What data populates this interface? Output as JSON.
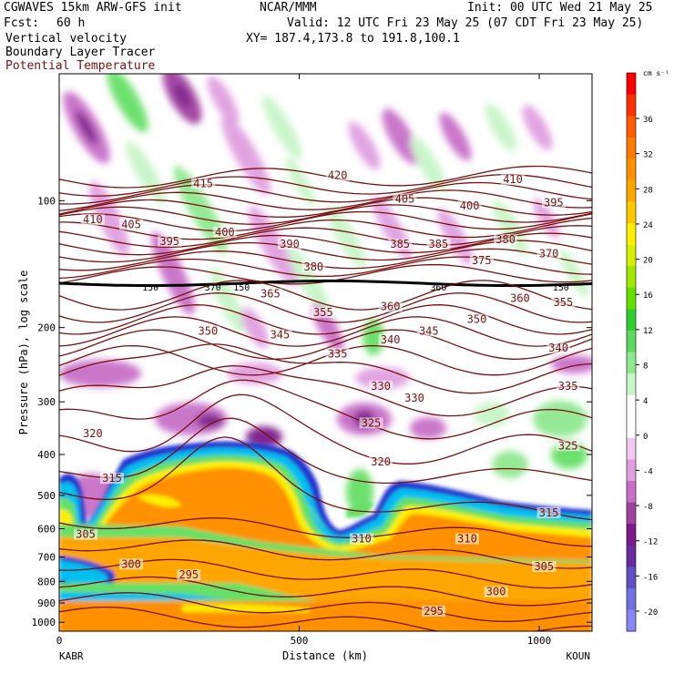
{
  "header": {
    "model": "CGWAVES 15km ARW-GFS init",
    "center": "NCAR/MMM",
    "init": "Init: 00 UTC Wed 21 May 25",
    "fcst_label": "Fcst:",
    "fcst_value": "60 h",
    "valid": "Valid: 12 UTC Fri 23 May 25 (07 CDT Fri 23 May 25)",
    "field1": "Vertical velocity",
    "xy": "XY= 187.4,173.8 to 191.8,100.1",
    "field2": "Boundary Layer Tracer",
    "field3": "Potential Temperature"
  },
  "chart_data": {
    "type": "heatmap",
    "xlabel": "Distance (km)",
    "ylabel": "Pressure (hPa), log scale",
    "x_ticks": [
      0,
      500,
      1000
    ],
    "x_range": [
      0,
      1110
    ],
    "y_ticks": [
      100,
      200,
      300,
      400,
      500,
      600,
      700,
      800,
      900,
      1000
    ],
    "y_range": [
      1050,
      50
    ],
    "left_endpoint": "KABR",
    "right_endpoint": "KOUN",
    "colorbar": {
      "units": "cm s⁻¹",
      "tick_labels": [
        36,
        32,
        28,
        24,
        20,
        16,
        12,
        8,
        4,
        0,
        -4,
        -8,
        -12,
        -16,
        -20
      ],
      "colors": [
        "#ff0000",
        "#ff3000",
        "#ff5a00",
        "#ff7a00",
        "#ff9000",
        "#ffa500",
        "#ffc800",
        "#ffee00",
        "#d6f000",
        "#a0e800",
        "#66e000",
        "#2ed02e",
        "#5cd85c",
        "#90e890",
        "#c8f5c8",
        "#ffffff",
        "#ffffff",
        "#f0c8f0",
        "#e0a0e0",
        "#c870c8",
        "#a040a0",
        "#7a1a8a",
        "#6a2aa0",
        "#6050c0",
        "#7070e0",
        "#8888f0"
      ]
    },
    "isentrope_labels": [
      {
        "v": "415",
        "x": 300,
        "p": 92
      },
      {
        "v": "420",
        "x": 580,
        "p": 88
      },
      {
        "v": "410",
        "x": 945,
        "p": 90
      },
      {
        "v": "410",
        "x": 70,
        "p": 112
      },
      {
        "v": "405",
        "x": 150,
        "p": 115
      },
      {
        "v": "405",
        "x": 720,
        "p": 100
      },
      {
        "v": "400",
        "x": 345,
        "p": 120
      },
      {
        "v": "400",
        "x": 855,
        "p": 104
      },
      {
        "v": "395",
        "x": 230,
        "p": 126
      },
      {
        "v": "395",
        "x": 1030,
        "p": 102
      },
      {
        "v": "390",
        "x": 480,
        "p": 128
      },
      {
        "v": "385",
        "x": 710,
        "p": 128
      },
      {
        "v": "385",
        "x": 790,
        "p": 128
      },
      {
        "v": "380",
        "x": 530,
        "p": 145
      },
      {
        "v": "380",
        "x": 930,
        "p": 125
      },
      {
        "v": "375",
        "x": 880,
        "p": 140
      },
      {
        "v": "370",
        "x": 1020,
        "p": 135
      },
      {
        "v": "365",
        "x": 440,
        "p": 168
      },
      {
        "v": "360",
        "x": 690,
        "p": 180
      },
      {
        "v": "360",
        "x": 960,
        "p": 172
      },
      {
        "v": "355",
        "x": 550,
        "p": 186
      },
      {
        "v": "355",
        "x": 1050,
        "p": 176
      },
      {
        "v": "350",
        "x": 310,
        "p": 206
      },
      {
        "v": "350",
        "x": 870,
        "p": 193
      },
      {
        "v": "345",
        "x": 460,
        "p": 210
      },
      {
        "v": "345",
        "x": 770,
        "p": 206
      },
      {
        "v": "340",
        "x": 690,
        "p": 216
      },
      {
        "v": "340",
        "x": 1040,
        "p": 226
      },
      {
        "v": "335",
        "x": 580,
        "p": 233
      },
      {
        "v": "335",
        "x": 1060,
        "p": 278
      },
      {
        "v": "330",
        "x": 670,
        "p": 278
      },
      {
        "v": "330",
        "x": 740,
        "p": 297
      },
      {
        "v": "325",
        "x": 650,
        "p": 340
      },
      {
        "v": "325",
        "x": 1060,
        "p": 385
      },
      {
        "v": "320",
        "x": 70,
        "p": 360
      },
      {
        "v": "320",
        "x": 670,
        "p": 420
      },
      {
        "v": "315",
        "x": 110,
        "p": 460
      },
      {
        "v": "315",
        "x": 1020,
        "p": 555
      },
      {
        "v": "310",
        "x": 630,
        "p": 640
      },
      {
        "v": "310",
        "x": 850,
        "p": 640
      },
      {
        "v": "305",
        "x": 55,
        "p": 625
      },
      {
        "v": "305",
        "x": 1010,
        "p": 745
      },
      {
        "v": "300",
        "x": 150,
        "p": 735
      },
      {
        "v": "300",
        "x": 910,
        "p": 855
      },
      {
        "v": "295",
        "x": 270,
        "p": 780
      },
      {
        "v": "295",
        "x": 780,
        "p": 950
      }
    ],
    "tropopause_labels": [
      {
        "v": "150",
        "x": 190,
        "p": 160
      },
      {
        "v": "370",
        "x": 320,
        "p": 160
      },
      {
        "v": "150",
        "x": 380,
        "p": 160
      },
      {
        "v": "360",
        "x": 790,
        "p": 160
      },
      {
        "v": "150",
        "x": 1045,
        "p": 160
      }
    ]
  }
}
